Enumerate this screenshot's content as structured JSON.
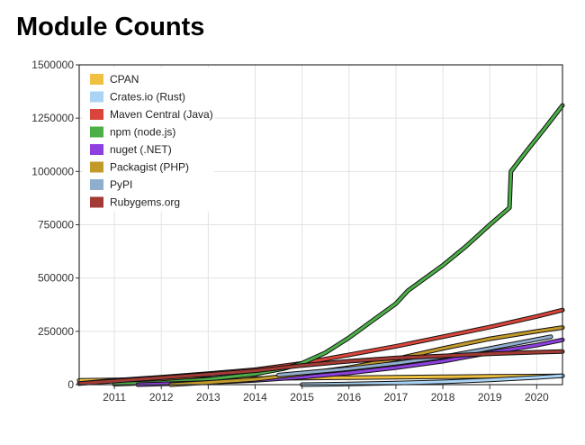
{
  "title": "Module Counts",
  "chart_data": {
    "type": "line",
    "title": "Module Counts",
    "xlabel": "",
    "ylabel": "",
    "xlim": [
      2010.25,
      2020.55
    ],
    "ylim": [
      0,
      1500000
    ],
    "y_ticks": [
      "0",
      "250000",
      "500000",
      "750000",
      "1000000",
      "1250000",
      "1500000"
    ],
    "x_ticks": [
      "2011",
      "2012",
      "2013",
      "2014",
      "2015",
      "2016",
      "2017",
      "2018",
      "2019",
      "2020"
    ],
    "grid": true,
    "legend_position": "top-left",
    "series": [
      {
        "name": "CPAN",
        "color": "#f0c040",
        "points": [
          [
            2010.25,
            20000
          ],
          [
            2011,
            22000
          ],
          [
            2012,
            24000
          ],
          [
            2013,
            27000
          ],
          [
            2014,
            29000
          ],
          [
            2015,
            31000
          ],
          [
            2016,
            33000
          ],
          [
            2017,
            35000
          ],
          [
            2018,
            37000
          ],
          [
            2019,
            39000
          ],
          [
            2020,
            40000
          ],
          [
            2020.55,
            41000
          ]
        ]
      },
      {
        "name": "Crates.io (Rust)",
        "color": "#a9d4f5",
        "points": [
          [
            2015,
            0
          ],
          [
            2016,
            3000
          ],
          [
            2017,
            7000
          ],
          [
            2018,
            13000
          ],
          [
            2019,
            22000
          ],
          [
            2020,
            34000
          ],
          [
            2020.55,
            42000
          ]
        ]
      },
      {
        "name": "Maven Central (Java)",
        "color": "#d9453a",
        "points": [
          [
            2010.25,
            5000
          ],
          [
            2011,
            20000
          ],
          [
            2012,
            35000
          ],
          [
            2013,
            52000
          ],
          [
            2014,
            70000
          ],
          [
            2015,
            100000
          ],
          [
            2016,
            140000
          ],
          [
            2017,
            180000
          ],
          [
            2018,
            225000
          ],
          [
            2019,
            270000
          ],
          [
            2020,
            320000
          ],
          [
            2020.55,
            350000
          ]
        ]
      },
      {
        "name": "npm (node.js)",
        "color": "#4caf48",
        "points": [
          [
            2011,
            2000
          ],
          [
            2012,
            10000
          ],
          [
            2013,
            25000
          ],
          [
            2014,
            50000
          ],
          [
            2014.6,
            75000
          ],
          [
            2015,
            100000
          ],
          [
            2015.5,
            150000
          ],
          [
            2016,
            220000
          ],
          [
            2016.5,
            300000
          ],
          [
            2017,
            380000
          ],
          [
            2017.25,
            440000
          ],
          [
            2017.5,
            480000
          ],
          [
            2018,
            560000
          ],
          [
            2018.5,
            650000
          ],
          [
            2019,
            750000
          ],
          [
            2019.42,
            830000
          ],
          [
            2019.45,
            1000000
          ],
          [
            2019.8,
            1100000
          ],
          [
            2020.2,
            1210000
          ],
          [
            2020.55,
            1310000
          ]
        ]
      },
      {
        "name": "nuget (.NET)",
        "color": "#8e3fe0",
        "points": [
          [
            2011.5,
            0
          ],
          [
            2012,
            3000
          ],
          [
            2013,
            10000
          ],
          [
            2014,
            20000
          ],
          [
            2015,
            35000
          ],
          [
            2016,
            55000
          ],
          [
            2017,
            80000
          ],
          [
            2018,
            110000
          ],
          [
            2019,
            150000
          ],
          [
            2020,
            185000
          ],
          [
            2020.55,
            210000
          ]
        ]
      },
      {
        "name": "Packagist (PHP)",
        "color": "#c29a2a",
        "points": [
          [
            2012.2,
            0
          ],
          [
            2013,
            10000
          ],
          [
            2014,
            25000
          ],
          [
            2015,
            50000
          ],
          [
            2016,
            80000
          ],
          [
            2017,
            120000
          ],
          [
            2018,
            170000
          ],
          [
            2019,
            215000
          ],
          [
            2020,
            250000
          ],
          [
            2020.55,
            268000
          ]
        ]
      },
      {
        "name": "PyPI",
        "color": "#8fadcc",
        "points": [
          [
            2014.5,
            45000
          ],
          [
            2015,
            55000
          ],
          [
            2016,
            75000
          ],
          [
            2017,
            100000
          ],
          [
            2018,
            130000
          ],
          [
            2019,
            170000
          ],
          [
            2020.3,
            225000
          ]
        ]
      },
      {
        "name": "Rubygems.org",
        "color": "#a33a35",
        "points": [
          [
            2010.25,
            5000
          ],
          [
            2011,
            17000
          ],
          [
            2012,
            32000
          ],
          [
            2013,
            48000
          ],
          [
            2014,
            65000
          ],
          [
            2015,
            90000
          ],
          [
            2016,
            110000
          ],
          [
            2017,
            125000
          ],
          [
            2018,
            135000
          ],
          [
            2019,
            145000
          ],
          [
            2020,
            152000
          ],
          [
            2020.55,
            155000
          ]
        ]
      }
    ]
  }
}
